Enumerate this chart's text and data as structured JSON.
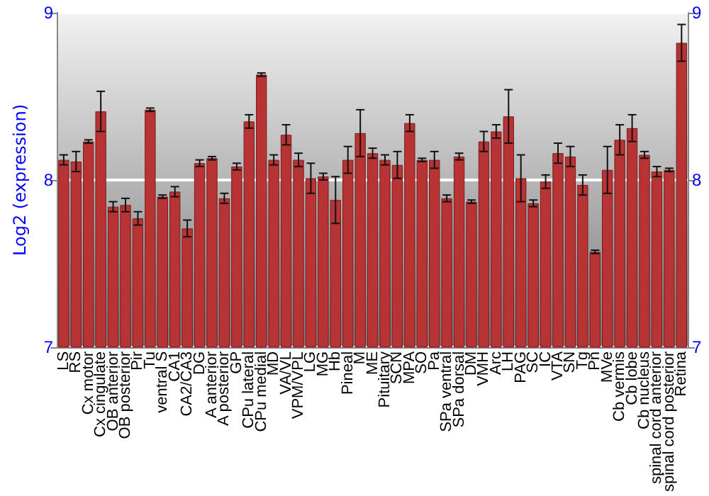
{
  "chart_data": {
    "type": "bar",
    "ylabel": "Log2 (expression)",
    "categories": [
      "LS",
      "RS",
      "Cx motor",
      "Cx cingulate",
      "OB anterior",
      "OB posterior",
      "Pir",
      "Tu",
      "ventral S",
      "CA1",
      "CA2/CA3",
      "DG",
      "A anterior",
      "A posterior",
      "GP",
      "CPu lateral",
      "CPu medial",
      "MD",
      "VA/VL",
      "VPM/VPL",
      "LG",
      "MG",
      "Hb",
      "Pineal",
      "M",
      "ME",
      "Pituitary",
      "SCN",
      "MPA",
      "SO",
      "Pa",
      "SPa ventral",
      "SPa dorsal",
      "DM",
      "VMH",
      "Arc",
      "LH",
      "PAG",
      "SC",
      "IC",
      "VTA",
      "SN",
      "Tg",
      "Pn",
      "MVe",
      "Cb vermis",
      "Cb lobe",
      "Cb nucleus",
      "spinal cord anterior",
      "spinal cord posterior",
      "Retina"
    ],
    "values": [
      8.12,
      8.11,
      8.23,
      8.41,
      7.84,
      7.85,
      7.77,
      8.42,
      7.9,
      7.93,
      7.71,
      8.1,
      8.13,
      7.89,
      8.08,
      8.35,
      8.63,
      8.12,
      8.27,
      8.12,
      8.01,
      8.02,
      7.88,
      8.12,
      8.28,
      8.16,
      8.12,
      8.09,
      8.34,
      8.12,
      8.12,
      7.89,
      8.14,
      7.87,
      8.23,
      8.29,
      8.38,
      8.01,
      7.86,
      7.99,
      8.16,
      8.14,
      7.97,
      7.57,
      8.06,
      8.24,
      8.31,
      8.15,
      8.05,
      8.06,
      8.82
    ],
    "errors": [
      0.03,
      0.06,
      0.01,
      0.12,
      0.03,
      0.04,
      0.04,
      0.01,
      0.01,
      0.03,
      0.05,
      0.02,
      0.01,
      0.03,
      0.02,
      0.04,
      0.01,
      0.03,
      0.06,
      0.04,
      0.09,
      0.02,
      0.14,
      0.08,
      0.14,
      0.03,
      0.03,
      0.08,
      0.05,
      0.01,
      0.05,
      0.02,
      0.02,
      0.01,
      0.06,
      0.04,
      0.16,
      0.14,
      0.02,
      0.04,
      0.06,
      0.06,
      0.06,
      0.01,
      0.14,
      0.09,
      0.08,
      0.02,
      0.03,
      0.01,
      0.11
    ],
    "color": "#b83434",
    "ylim": [
      7,
      9
    ],
    "yticks": [
      7,
      8,
      9
    ],
    "y2lim": [
      7,
      9
    ],
    "y2ticks": [
      7,
      8,
      9
    ],
    "grid": "y"
  }
}
